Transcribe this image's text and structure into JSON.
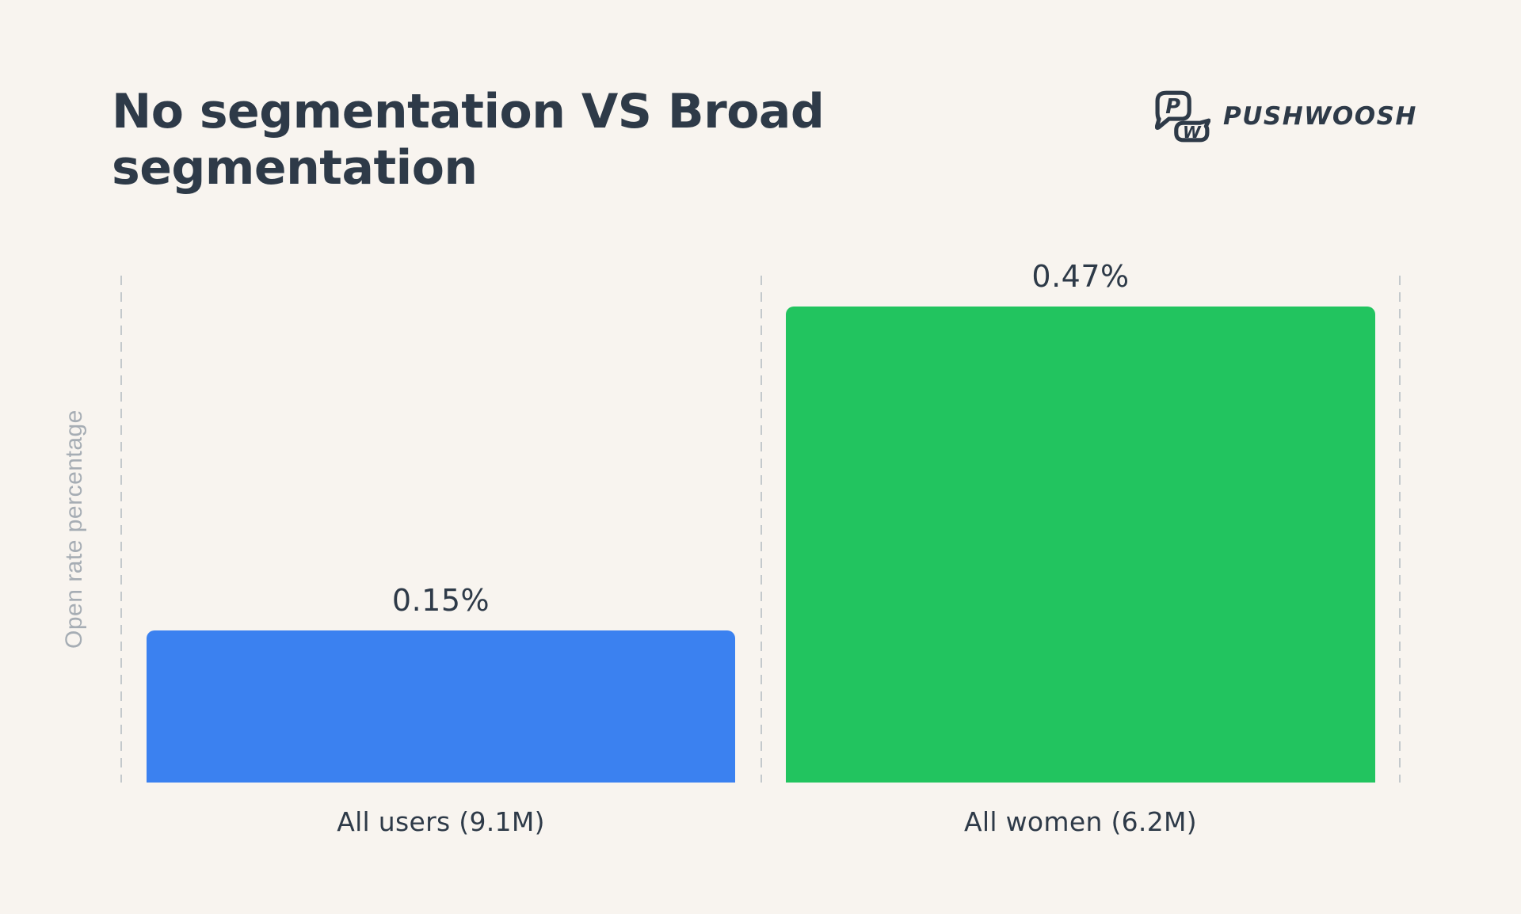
{
  "header": {
    "title_lines": [
      "No segmentation VS Broad",
      "segmentation"
    ],
    "title_full": "No segmentation VS Broad segmentation"
  },
  "logo": {
    "brand": "PUSHWOOSH",
    "icon_letters": [
      "P",
      "W"
    ]
  },
  "chart_data": {
    "type": "bar",
    "title": "No segmentation VS Broad segmentation",
    "categories": [
      "All users (9.1M)",
      "All women (6.2M)"
    ],
    "values": [
      0.15,
      0.47
    ],
    "value_labels": [
      "0.15%",
      "0.47%"
    ],
    "xlabel": "",
    "ylabel": "Open rate percentage",
    "ylim": [
      0,
      0.5
    ],
    "legend": "none",
    "grid": "vertical dashed separators at left, middle and right of plot",
    "bar_colors": [
      "#3B81F0",
      "#22C45F"
    ]
  },
  "colors": {
    "background": "#F8F4EF",
    "text_dark": "#2E3A48",
    "bar_blue": "#3B81F0",
    "bar_green": "#22C45F",
    "gridline": "#C4C9CC",
    "axis_label_grey": "#A6ADB4"
  }
}
